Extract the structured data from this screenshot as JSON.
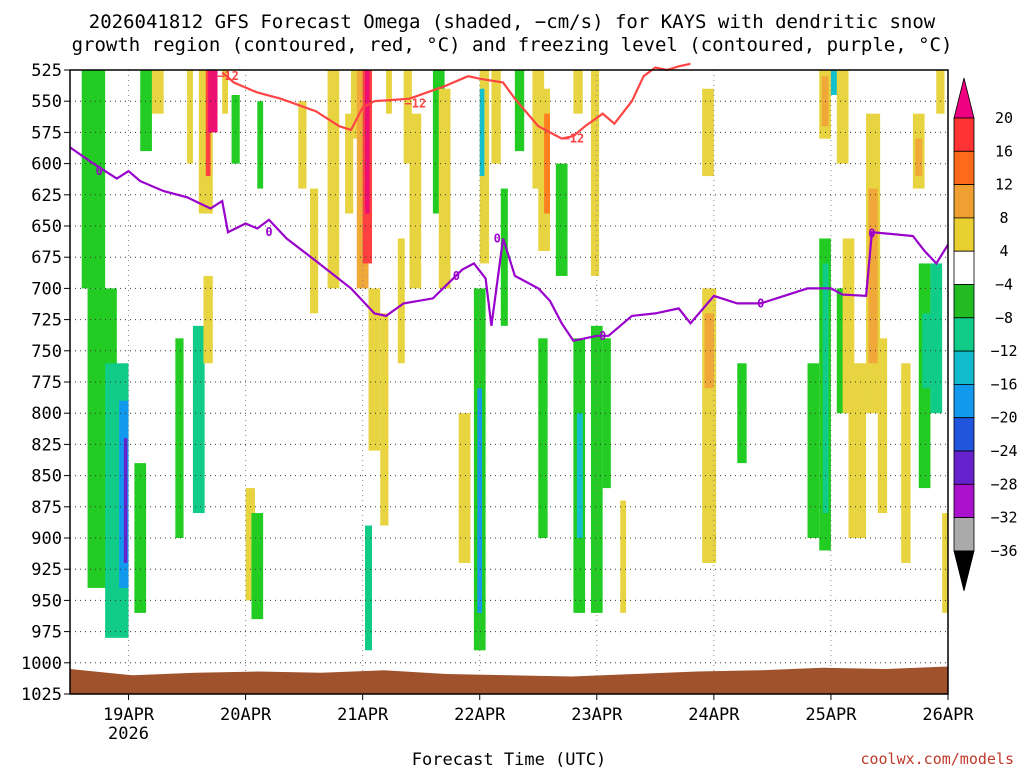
{
  "chart_data": {
    "type": "heatmap",
    "title_line1": "2026041812 GFS Forecast Omega (shaded, −cm/s) for KAYS with dendritic snow",
    "title_line2": "growth region (contoured, red, °C) and freezing level (contoured, purple, °C)",
    "xlabel": "Forecast Time (UTC)",
    "credit": "coolwx.com/models",
    "y_ticks": [
      525,
      550,
      575,
      600,
      625,
      650,
      675,
      700,
      725,
      750,
      775,
      800,
      825,
      850,
      875,
      900,
      925,
      950,
      975,
      1000,
      1025
    ],
    "ylim": [
      1025,
      525
    ],
    "x_range_days": [
      18.5,
      26.0
    ],
    "x_ticks": [
      {
        "day": 19,
        "label": "19APR",
        "sub": "2026"
      },
      {
        "day": 20,
        "label": "20APR",
        "sub": ""
      },
      {
        "day": 21,
        "label": "21APR",
        "sub": ""
      },
      {
        "day": 22,
        "label": "22APR",
        "sub": ""
      },
      {
        "day": 23,
        "label": "23APR",
        "sub": ""
      },
      {
        "day": 24,
        "label": "24APR",
        "sub": ""
      },
      {
        "day": 25,
        "label": "25APR",
        "sub": ""
      },
      {
        "day": 26,
        "label": "26APR",
        "sub": ""
      }
    ],
    "colorbar": {
      "labels": [
        "20",
        "16",
        "12",
        "8",
        "4",
        "−4",
        "−8",
        "−12",
        "−16",
        "−20",
        "−24",
        "−28",
        "−32",
        "−36"
      ],
      "colors": [
        "#ee0080",
        "#ff3333",
        "#ff6a1a",
        "#f0a030",
        "#e8d030",
        "#ffffff",
        "#22bb22",
        "#11cc88",
        "#11bbcc",
        "#1199ee",
        "#2255dd",
        "#6622cc",
        "#aa11cc",
        "#aaaaaa",
        "#000000"
      ]
    },
    "dgz_contour": {
      "label": "−12",
      "color": "#ff4444",
      "points": [
        [
          19.8,
          527
        ],
        [
          19.9,
          535
        ],
        [
          20.1,
          543
        ],
        [
          20.3,
          548
        ],
        [
          20.6,
          558
        ],
        [
          20.8,
          570
        ],
        [
          20.9,
          573
        ],
        [
          21.0,
          555
        ],
        [
          21.1,
          550
        ],
        [
          21.4,
          548
        ],
        [
          21.7,
          538
        ],
        [
          21.9,
          530
        ],
        [
          22.0,
          532
        ],
        [
          22.2,
          535
        ],
        [
          22.3,
          548
        ],
        [
          22.5,
          570
        ],
        [
          22.7,
          580
        ],
        [
          22.8,
          578
        ],
        [
          22.9,
          570
        ],
        [
          23.05,
          560
        ],
        [
          23.15,
          568
        ],
        [
          23.3,
          550
        ],
        [
          23.4,
          530
        ],
        [
          23.5,
          523
        ],
        [
          23.6,
          525
        ],
        [
          23.7,
          522
        ],
        [
          23.8,
          520
        ]
      ],
      "labels_at": [
        [
          19.85,
          530
        ],
        [
          21.45,
          552
        ],
        [
          22.8,
          580
        ]
      ]
    },
    "freezing_level": {
      "label": "0",
      "color": "#9900cc",
      "points": [
        [
          18.5,
          587
        ],
        [
          18.7,
          600
        ],
        [
          18.9,
          612
        ],
        [
          19.0,
          606
        ],
        [
          19.1,
          614
        ],
        [
          19.3,
          622
        ],
        [
          19.5,
          627
        ],
        [
          19.7,
          636
        ],
        [
          19.8,
          630
        ],
        [
          19.85,
          655
        ],
        [
          20.0,
          648
        ],
        [
          20.1,
          652
        ],
        [
          20.2,
          645
        ],
        [
          20.35,
          660
        ],
        [
          20.6,
          678
        ],
        [
          20.9,
          700
        ],
        [
          21.1,
          720
        ],
        [
          21.2,
          722
        ],
        [
          21.35,
          712
        ],
        [
          21.6,
          708
        ],
        [
          21.85,
          685
        ],
        [
          21.95,
          680
        ],
        [
          22.05,
          692
        ],
        [
          22.1,
          730
        ],
        [
          22.2,
          660
        ],
        [
          22.3,
          690
        ],
        [
          22.5,
          700
        ],
        [
          22.6,
          710
        ],
        [
          22.7,
          728
        ],
        [
          22.8,
          742
        ],
        [
          23.0,
          738
        ],
        [
          23.1,
          738
        ],
        [
          23.3,
          722
        ],
        [
          23.5,
          720
        ],
        [
          23.7,
          716
        ],
        [
          23.8,
          728
        ],
        [
          24.0,
          706
        ],
        [
          24.2,
          712
        ],
        [
          24.4,
          712
        ],
        [
          24.6,
          706
        ],
        [
          24.8,
          700
        ],
        [
          25.0,
          700
        ],
        [
          25.1,
          705
        ],
        [
          25.3,
          706
        ],
        [
          25.35,
          655
        ],
        [
          25.7,
          658
        ],
        [
          25.8,
          670
        ],
        [
          25.9,
          680
        ],
        [
          26.0,
          665
        ]
      ],
      "labels_at": [
        [
          18.75,
          606
        ],
        [
          20.2,
          655
        ],
        [
          21.8,
          690
        ],
        [
          22.15,
          660
        ],
        [
          23.05,
          738
        ],
        [
          24.4,
          712
        ],
        [
          25.35,
          656
        ]
      ]
    },
    "omega_cells": [
      {
        "t1": 18.6,
        "t2": 18.8,
        "p1": 525,
        "p2": 700,
        "v": -6
      },
      {
        "t1": 18.65,
        "t2": 18.9,
        "p1": 700,
        "p2": 940,
        "v": -6
      },
      {
        "t1": 18.8,
        "t2": 19.0,
        "p1": 760,
        "p2": 980,
        "v": -10
      },
      {
        "t1": 18.92,
        "t2": 19.0,
        "p1": 790,
        "p2": 940,
        "v": -18
      },
      {
        "t1": 18.96,
        "t2": 18.99,
        "p1": 820,
        "p2": 920,
        "v": -25
      },
      {
        "t1": 19.05,
        "t2": 19.15,
        "p1": 840,
        "p2": 960,
        "v": -6
      },
      {
        "t1": 19.1,
        "t2": 19.2,
        "p1": 525,
        "p2": 590,
        "v": -6
      },
      {
        "t1": 19.2,
        "t2": 19.3,
        "p1": 525,
        "p2": 560,
        "v": 5
      },
      {
        "t1": 19.4,
        "t2": 19.47,
        "p1": 740,
        "p2": 900,
        "v": -6
      },
      {
        "t1": 19.5,
        "t2": 19.55,
        "p1": 525,
        "p2": 600,
        "v": 5
      },
      {
        "t1": 19.55,
        "t2": 19.65,
        "p1": 730,
        "p2": 880,
        "v": -8
      },
      {
        "t1": 19.6,
        "t2": 19.72,
        "p1": 525,
        "p2": 640,
        "v": 6
      },
      {
        "t1": 19.66,
        "t2": 19.7,
        "p1": 525,
        "p2": 610,
        "v": 14
      },
      {
        "t1": 19.64,
        "t2": 19.72,
        "p1": 690,
        "p2": 760,
        "v": 5
      },
      {
        "t1": 19.68,
        "t2": 19.76,
        "p1": 525,
        "p2": 575,
        "v": 18
      },
      {
        "t1": 19.8,
        "t2": 19.85,
        "p1": 525,
        "p2": 560,
        "v": 6
      },
      {
        "t1": 19.88,
        "t2": 19.95,
        "p1": 545,
        "p2": 600,
        "v": -6
      },
      {
        "t1": 20.0,
        "t2": 20.08,
        "p1": 860,
        "p2": 950,
        "v": 6
      },
      {
        "t1": 20.05,
        "t2": 20.15,
        "p1": 880,
        "p2": 965,
        "v": -6
      },
      {
        "t1": 20.1,
        "t2": 20.15,
        "p1": 550,
        "p2": 620,
        "v": -6
      },
      {
        "t1": 20.45,
        "t2": 20.52,
        "p1": 550,
        "p2": 620,
        "v": 5
      },
      {
        "t1": 20.55,
        "t2": 20.62,
        "p1": 620,
        "p2": 720,
        "v": 5
      },
      {
        "t1": 20.7,
        "t2": 20.8,
        "p1": 525,
        "p2": 700,
        "v": 6
      },
      {
        "t1": 20.85,
        "t2": 20.92,
        "p1": 560,
        "p2": 640,
        "v": 5
      },
      {
        "t1": 20.9,
        "t2": 21.0,
        "p1": 525,
        "p2": 580,
        "v": 5
      },
      {
        "t1": 20.95,
        "t2": 21.05,
        "p1": 525,
        "p2": 700,
        "v": 8
      },
      {
        "t1": 21.0,
        "t2": 21.08,
        "p1": 525,
        "p2": 680,
        "v": 14
      },
      {
        "t1": 21.02,
        "t2": 21.06,
        "p1": 525,
        "p2": 640,
        "v": 20
      },
      {
        "t1": 21.05,
        "t2": 21.15,
        "p1": 700,
        "p2": 830,
        "v": 5
      },
      {
        "t1": 21.02,
        "t2": 21.08,
        "p1": 890,
        "p2": 990,
        "v": -8
      },
      {
        "t1": 21.15,
        "t2": 21.22,
        "p1": 720,
        "p2": 890,
        "v": 5
      },
      {
        "t1": 21.2,
        "t2": 21.25,
        "p1": 525,
        "p2": 560,
        "v": 5
      },
      {
        "t1": 21.3,
        "t2": 21.36,
        "p1": 660,
        "p2": 760,
        "v": 5
      },
      {
        "t1": 21.35,
        "t2": 21.42,
        "p1": 525,
        "p2": 600,
        "v": 6
      },
      {
        "t1": 21.4,
        "t2": 21.5,
        "p1": 560,
        "p2": 700,
        "v": 5
      },
      {
        "t1": 21.6,
        "t2": 21.7,
        "p1": 525,
        "p2": 640,
        "v": -6
      },
      {
        "t1": 21.65,
        "t2": 21.75,
        "p1": 540,
        "p2": 700,
        "v": 5
      },
      {
        "t1": 21.82,
        "t2": 21.92,
        "p1": 800,
        "p2": 920,
        "v": 5
      },
      {
        "t1": 21.95,
        "t2": 22.05,
        "p1": 700,
        "p2": 990,
        "v": -6
      },
      {
        "t1": 21.98,
        "t2": 22.02,
        "p1": 780,
        "p2": 960,
        "v": -18
      },
      {
        "t1": 22.0,
        "t2": 22.08,
        "p1": 525,
        "p2": 680,
        "v": 5
      },
      {
        "t1": 22.0,
        "t2": 22.04,
        "p1": 540,
        "p2": 610,
        "v": -12
      },
      {
        "t1": 22.1,
        "t2": 22.18,
        "p1": 525,
        "p2": 600,
        "v": 5
      },
      {
        "t1": 22.18,
        "t2": 22.24,
        "p1": 620,
        "p2": 730,
        "v": -6
      },
      {
        "t1": 22.3,
        "t2": 22.38,
        "p1": 525,
        "p2": 590,
        "v": -6
      },
      {
        "t1": 22.45,
        "t2": 22.55,
        "p1": 525,
        "p2": 620,
        "v": 6
      },
      {
        "t1": 22.5,
        "t2": 22.6,
        "p1": 540,
        "p2": 670,
        "v": 5
      },
      {
        "t1": 22.55,
        "t2": 22.6,
        "p1": 560,
        "p2": 640,
        "v": 12
      },
      {
        "t1": 22.5,
        "t2": 22.58,
        "p1": 740,
        "p2": 900,
        "v": -6
      },
      {
        "t1": 22.65,
        "t2": 22.75,
        "p1": 600,
        "p2": 690,
        "v": -6
      },
      {
        "t1": 22.8,
        "t2": 22.88,
        "p1": 525,
        "p2": 560,
        "v": 5
      },
      {
        "t1": 22.8,
        "t2": 22.9,
        "p1": 740,
        "p2": 960,
        "v": -6
      },
      {
        "t1": 22.83,
        "t2": 22.88,
        "p1": 800,
        "p2": 900,
        "v": -12
      },
      {
        "t1": 22.95,
        "t2": 23.02,
        "p1": 525,
        "p2": 690,
        "v": 6
      },
      {
        "t1": 22.95,
        "t2": 23.05,
        "p1": 730,
        "p2": 960,
        "v": -6
      },
      {
        "t1": 23.05,
        "t2": 23.12,
        "p1": 740,
        "p2": 860,
        "v": -6
      },
      {
        "t1": 23.2,
        "t2": 23.25,
        "p1": 870,
        "p2": 960,
        "v": 5
      },
      {
        "t1": 23.9,
        "t2": 24.0,
        "p1": 540,
        "p2": 610,
        "v": 5
      },
      {
        "t1": 23.9,
        "t2": 24.02,
        "p1": 700,
        "p2": 920,
        "v": 5
      },
      {
        "t1": 23.92,
        "t2": 24.0,
        "p1": 720,
        "p2": 780,
        "v": 10
      },
      {
        "t1": 24.2,
        "t2": 24.28,
        "p1": 760,
        "p2": 840,
        "v": -6
      },
      {
        "t1": 24.9,
        "t2": 25.0,
        "p1": 525,
        "p2": 580,
        "v": 5
      },
      {
        "t1": 24.92,
        "t2": 24.98,
        "p1": 530,
        "p2": 570,
        "v": 10
      },
      {
        "t1": 24.8,
        "t2": 24.9,
        "p1": 760,
        "p2": 900,
        "v": -6
      },
      {
        "t1": 24.9,
        "t2": 25.0,
        "p1": 660,
        "p2": 910,
        "v": -6
      },
      {
        "t1": 24.93,
        "t2": 24.98,
        "p1": 680,
        "p2": 880,
        "v": -10
      },
      {
        "t1": 25.0,
        "t2": 25.08,
        "p1": 525,
        "p2": 545,
        "v": -14
      },
      {
        "t1": 25.05,
        "t2": 25.15,
        "p1": 525,
        "p2": 600,
        "v": 5
      },
      {
        "t1": 25.05,
        "t2": 25.15,
        "p1": 700,
        "p2": 800,
        "v": -6
      },
      {
        "t1": 25.1,
        "t2": 25.2,
        "p1": 660,
        "p2": 800,
        "v": 5
      },
      {
        "t1": 25.15,
        "t2": 25.3,
        "p1": 760,
        "p2": 900,
        "v": 5
      },
      {
        "t1": 25.3,
        "t2": 25.42,
        "p1": 560,
        "p2": 800,
        "v": 5
      },
      {
        "t1": 25.32,
        "t2": 25.4,
        "p1": 620,
        "p2": 760,
        "v": 8
      },
      {
        "t1": 25.4,
        "t2": 25.48,
        "p1": 740,
        "p2": 880,
        "v": 5
      },
      {
        "t1": 25.6,
        "t2": 25.68,
        "p1": 760,
        "p2": 920,
        "v": 5
      },
      {
        "t1": 25.7,
        "t2": 25.8,
        "p1": 560,
        "p2": 620,
        "v": 5
      },
      {
        "t1": 25.72,
        "t2": 25.78,
        "p1": 580,
        "p2": 610,
        "v": 10
      },
      {
        "t1": 25.75,
        "t2": 25.85,
        "p1": 680,
        "p2": 860,
        "v": -6
      },
      {
        "t1": 25.78,
        "t2": 25.85,
        "p1": 720,
        "p2": 780,
        "v": -10
      },
      {
        "t1": 25.85,
        "t2": 25.95,
        "p1": 680,
        "p2": 800,
        "v": -8
      },
      {
        "t1": 25.9,
        "t2": 25.97,
        "p1": 525,
        "p2": 560,
        "v": 5
      },
      {
        "t1": 25.95,
        "t2": 26.0,
        "p1": 880,
        "p2": 960,
        "v": 5
      }
    ],
    "surface": {
      "color": "#a0522d",
      "p_top": [
        1005,
        1010,
        1008,
        1007,
        1008,
        1006,
        1009,
        1010,
        1011,
        1009,
        1007,
        1006,
        1004,
        1005,
        1003
      ]
    }
  }
}
